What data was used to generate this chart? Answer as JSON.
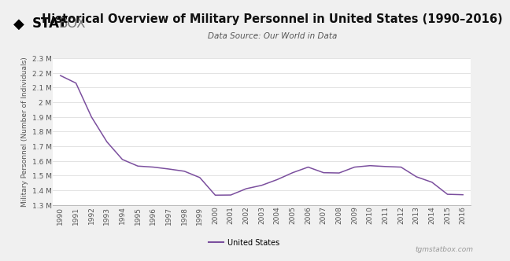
{
  "title": "Historical Overview of Military Personnel in United States (1990–2016)",
  "subtitle": "Data Source: Our World in Data",
  "ylabel": "Military Personnel (Number of Individuals)",
  "legend_label": "United States",
  "watermark": "tgmstatbox.com",
  "line_color": "#7b4f9e",
  "bg_color": "#f0f0f0",
  "plot_bg_color": "#ffffff",
  "years": [
    1990,
    1991,
    1992,
    1993,
    1994,
    1995,
    1996,
    1997,
    1998,
    1999,
    2000,
    2001,
    2002,
    2003,
    2004,
    2005,
    2006,
    2007,
    2008,
    2009,
    2010,
    2011,
    2012,
    2013,
    2014,
    2015,
    2016
  ],
  "values": [
    2181196,
    2130000,
    1900000,
    1730000,
    1610000,
    1565000,
    1558000,
    1545000,
    1530000,
    1487000,
    1367000,
    1368000,
    1411000,
    1434000,
    1473000,
    1520000,
    1558000,
    1520000,
    1518000,
    1558000,
    1568000,
    1562000,
    1558000,
    1492000,
    1455000,
    1373000,
    1370000
  ],
  "ylim_min": 1300000,
  "ylim_max": 2300000,
  "yticks": [
    1300000,
    1400000,
    1500000,
    1600000,
    1700000,
    1800000,
    1900000,
    2000000,
    2100000,
    2200000,
    2300000
  ],
  "ytick_labels": [
    "1.3 M",
    "1.4 M",
    "1.5 M",
    "1.6 M",
    "1.7 M",
    "1.8 M",
    "1.9 M",
    "2 M",
    "2.1 M",
    "2.2 M",
    "2.3 M"
  ],
  "header_bg": "#e8e8e8",
  "title_fontsize": 10.5,
  "subtitle_fontsize": 7.5,
  "axis_fontsize": 6.5,
  "ylabel_fontsize": 6.5,
  "logo_diamond": "◆",
  "logo_stat": "STAT",
  "logo_box": "BOX"
}
